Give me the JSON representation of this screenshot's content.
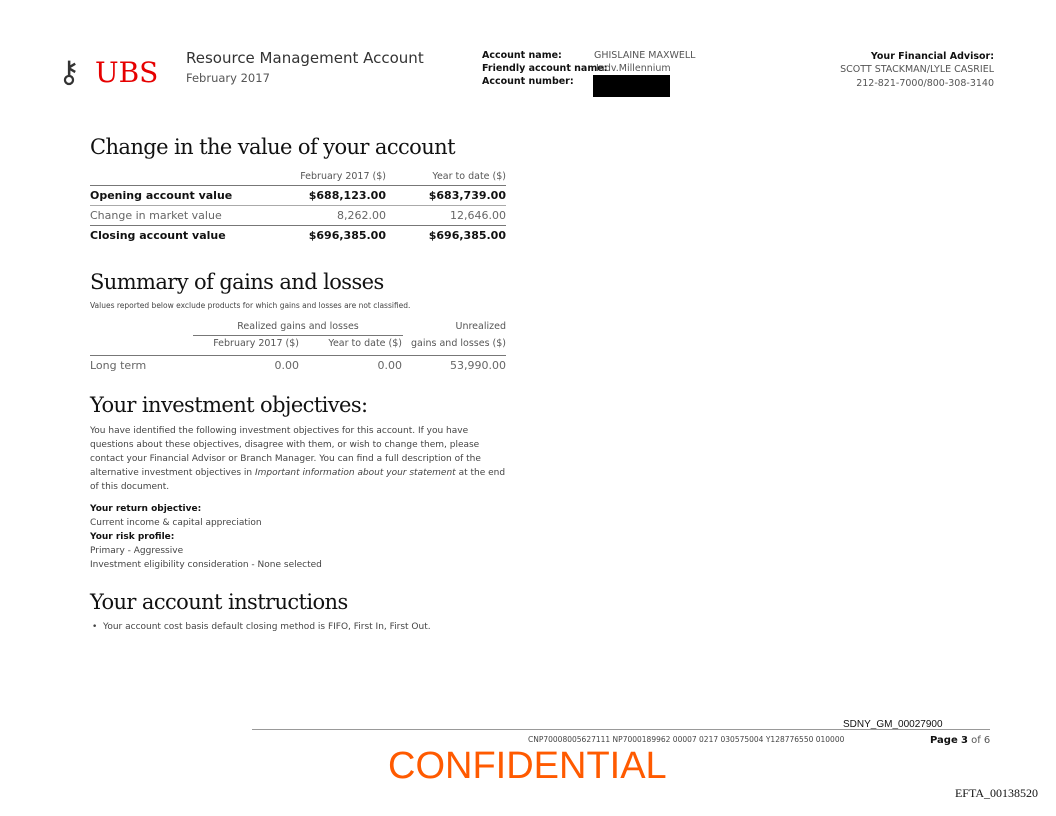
{
  "header": {
    "logo_text": "UBS",
    "title": "Resource Management Account",
    "period": "February 2017",
    "account_name_label": "Account name:",
    "account_name": "GHISLAINE MAXWELL",
    "friendly_label": "Friendly account name:",
    "friendly_name": "Indv.Millennium",
    "account_number_label": "Account number:",
    "advisor_label": "Your Financial Advisor:",
    "advisor_names": "SCOTT STACKMAN/LYLE CASRIEL",
    "advisor_phone": "212-821-7000/800-308-3140"
  },
  "change": {
    "title": "Change in the value of your account",
    "col1": "February 2017 ($)",
    "col2": "Year to date ($)",
    "rows": [
      {
        "label": "Opening account value",
        "v1": "$688,123.00",
        "v2": "$683,739.00",
        "bold": true
      },
      {
        "label": "Change in market value",
        "v1": "8,262.00",
        "v2": "12,646.00",
        "bold": false
      },
      {
        "label": "Closing account value",
        "v1": "$696,385.00",
        "v2": "$696,385.00",
        "bold": true
      }
    ]
  },
  "gains": {
    "title": "Summary of gains and losses",
    "note": "Values reported below exclude products for which gains and losses are not classified.",
    "realized_header": "Realized gains and losses",
    "unrealized_header1": "Unrealized",
    "col1": "February 2017 ($)",
    "col2": "Year to date ($)",
    "col3": "gains and losses ($)",
    "row": {
      "label": "Long term",
      "v1": "0.00",
      "v2": "0.00",
      "v3": "53,990.00"
    }
  },
  "objectives": {
    "title": "Your investment objectives:",
    "para_a": "You have identified the following investment objectives for this account. If you have questions about these objectives, disagree with them, or wish to change them, please contact your Financial Advisor or Branch Manager. You can find a full description of the alternative investment objectives in ",
    "para_italic": "Important information about your statement",
    "para_b": " at the end of this document.",
    "return_label": "Your return objective:",
    "return_value": "Current income & capital appreciation",
    "risk_label": "Your risk profile:",
    "risk_value": "Primary - Aggressive",
    "eligibility": "Investment eligibility consideration - None selected"
  },
  "instructions": {
    "title": "Your account instructions",
    "items": [
      "Your account cost basis default closing method is FIFO, First In, First Out."
    ]
  },
  "footer": {
    "bates": "SDNY_GM_00027900",
    "code": "CNP70008005627111 NP7000189962 00007 0217 030575004 Y128776550 010000",
    "page_label": "Page",
    "page": "3",
    "of": "of 6",
    "confidential": "CONFIDENTIAL",
    "efta": "EFTA_00138520"
  },
  "colors": {
    "logo_red": "#e60000",
    "confidential": "#ff5a00"
  }
}
